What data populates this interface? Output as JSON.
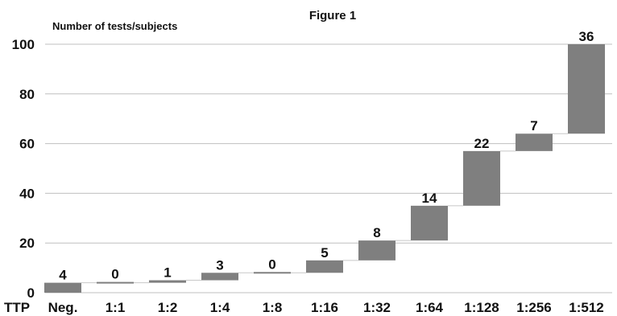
{
  "chart_data": {
    "type": "bar",
    "subtype": "waterfall",
    "title": "Figure 1",
    "ylabel": "Number of tests/subjects",
    "xlabel": "TTP",
    "categories": [
      "Neg.",
      "1:1",
      "1:2",
      "1:4",
      "1:8",
      "1:16",
      "1:32",
      "1:64",
      "1:128",
      "1:256",
      "1:512"
    ],
    "values": [
      4,
      0,
      1,
      3,
      0,
      5,
      8,
      14,
      22,
      7,
      36
    ],
    "cumulative": [
      4,
      4,
      5,
      8,
      8,
      13,
      21,
      35,
      57,
      64,
      100
    ],
    "ylim": [
      0,
      100
    ],
    "yticks": [
      0,
      20,
      40,
      60,
      80,
      100
    ],
    "grid": true,
    "legend": "none",
    "bar_color": "#7f7f7f",
    "grid_color": "#bfbfbf",
    "connector_color": "#c8c8c8"
  }
}
